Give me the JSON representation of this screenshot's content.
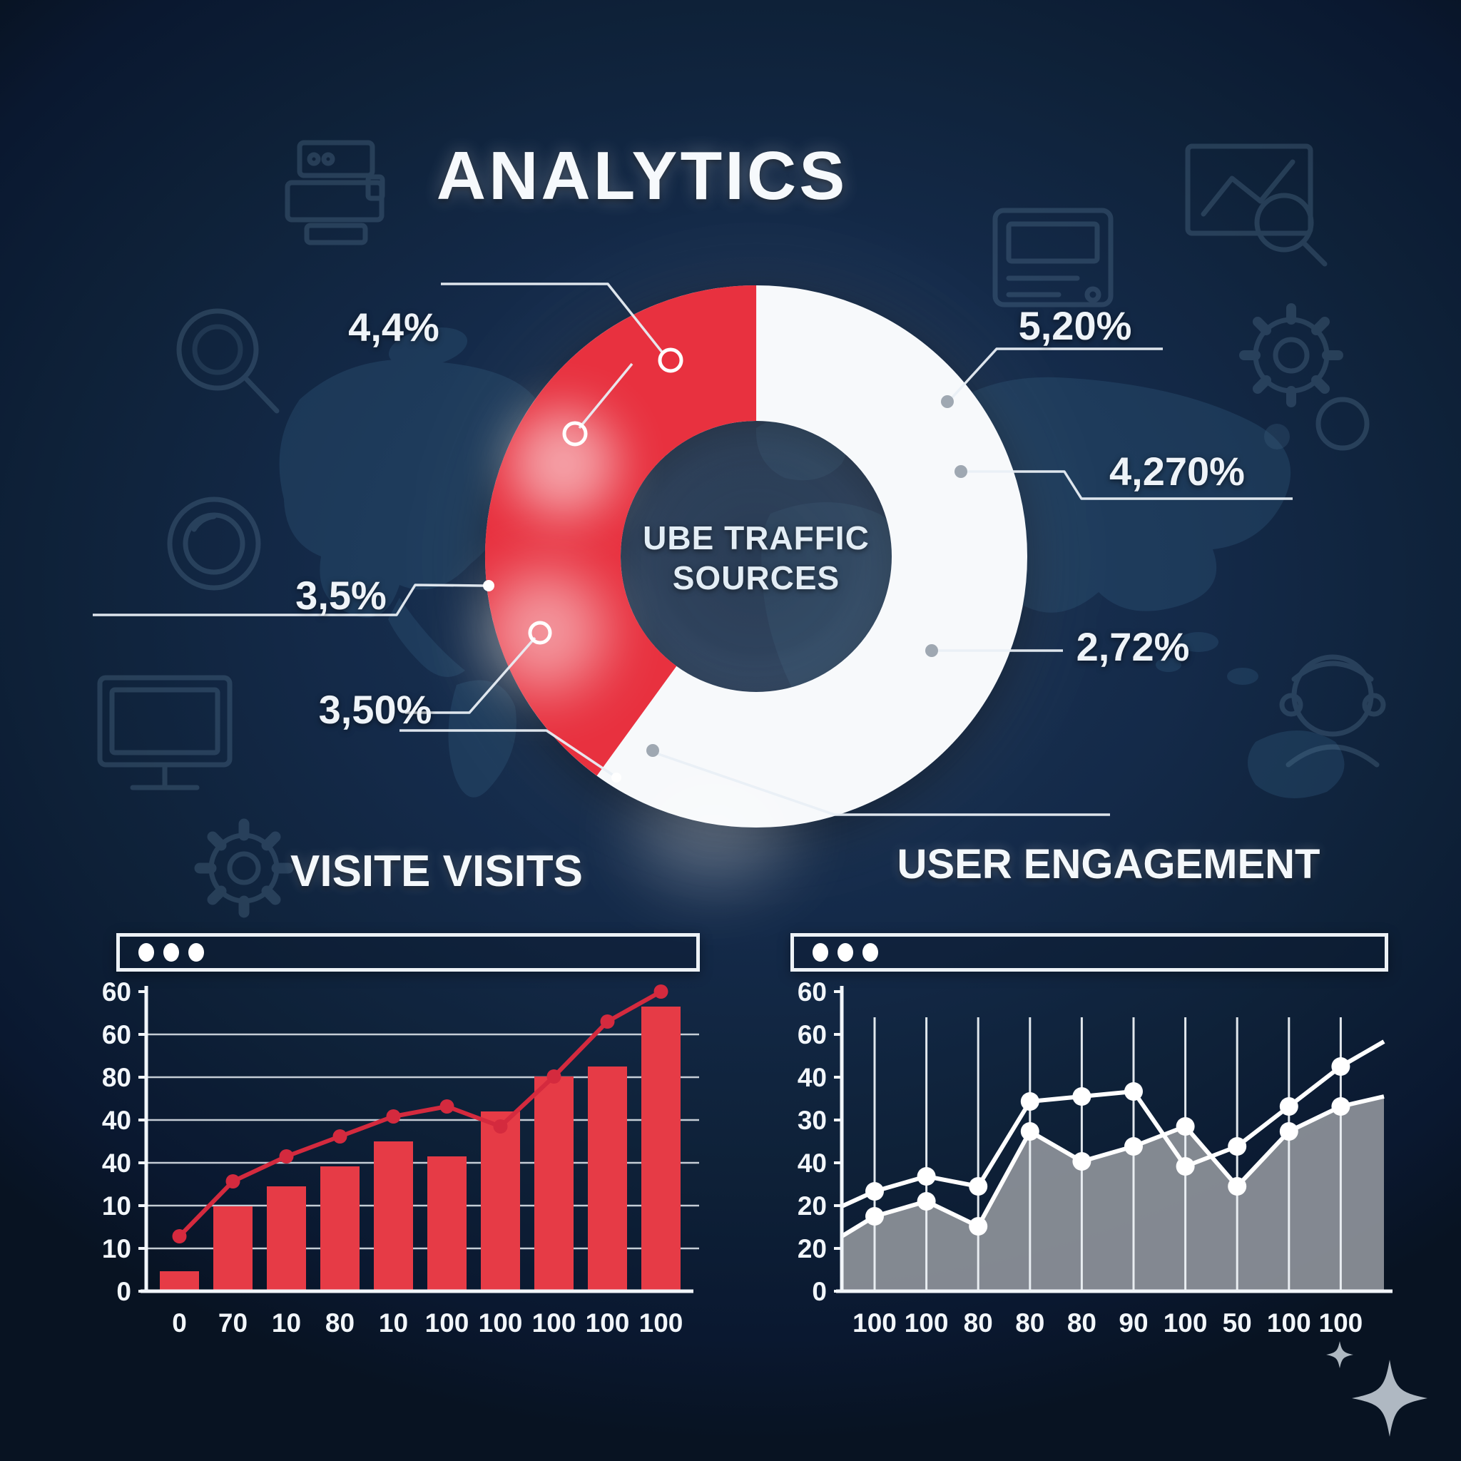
{
  "title": "ANALYTICS",
  "colors": {
    "background": "#0e2138",
    "accent_red": "#e8313f",
    "bar_red": "#e63b46",
    "line_red": "#d42a3e",
    "donut_white": "#f7f9fb",
    "chart_gray": "#8d9199",
    "text": "#f2f6fa",
    "icon_blue": "#5d7d9a"
  },
  "icons": [
    "printer-icon",
    "search-icon",
    "clock-icon",
    "monitor-icon",
    "gear-icon",
    "chart-search-icon",
    "browser-card-icon",
    "gears-icon",
    "users-icon",
    "sparkle-icon",
    "world-map",
    "browser-bar-dots"
  ],
  "chart_data": [
    {
      "type": "pie",
      "title": "UBE TRAFFIC SOURCES",
      "slices": [
        {
          "name": "red-segment",
          "value": 40,
          "color": "#e8313f"
        },
        {
          "name": "white-segment",
          "value": 60,
          "color": "#f7f9fb"
        }
      ],
      "inner_radius_ratio": 0.5,
      "callouts": [
        "4,4%",
        "3,5%",
        "3,50%",
        "5,20%",
        "4,270%",
        "2,72%"
      ]
    },
    {
      "type": "bar",
      "title": "VISITE VISITS",
      "y_tick_labels": [
        "60",
        "60",
        "80",
        "40",
        "40",
        "10",
        "10",
        "0"
      ],
      "x_tick_labels": [
        "0",
        "70",
        "10",
        "80",
        "10",
        "100",
        "100",
        "100",
        "100",
        "100"
      ],
      "ylim": [
        0,
        60
      ],
      "bars": [
        4,
        17,
        21,
        25,
        30,
        27,
        36,
        43,
        45,
        57
      ],
      "line": [
        11,
        22,
        27,
        31,
        35,
        37,
        33,
        43,
        54,
        60
      ],
      "bar_color": "#e63b46",
      "line_color": "#d42a3e",
      "grid": "horizontal"
    },
    {
      "type": "area",
      "title": "USER ENGAGEMENT",
      "y_tick_labels": [
        "60",
        "60",
        "40",
        "30",
        "40",
        "20",
        "20",
        "0"
      ],
      "x_tick_labels": [
        "100",
        "100",
        "80",
        "80",
        "80",
        "90",
        "100",
        "50",
        "100",
        "100"
      ],
      "ylim": [
        0,
        60
      ],
      "line_top": [
        17,
        20,
        23,
        21,
        38,
        39,
        40,
        25,
        29,
        37,
        45,
        50
      ],
      "area_line": [
        11,
        15,
        18,
        13,
        32,
        26,
        29,
        33,
        21,
        32,
        37,
        39
      ],
      "area_color": "#8d9199",
      "line_color": "#ffffff",
      "grid": "vertical"
    }
  ]
}
